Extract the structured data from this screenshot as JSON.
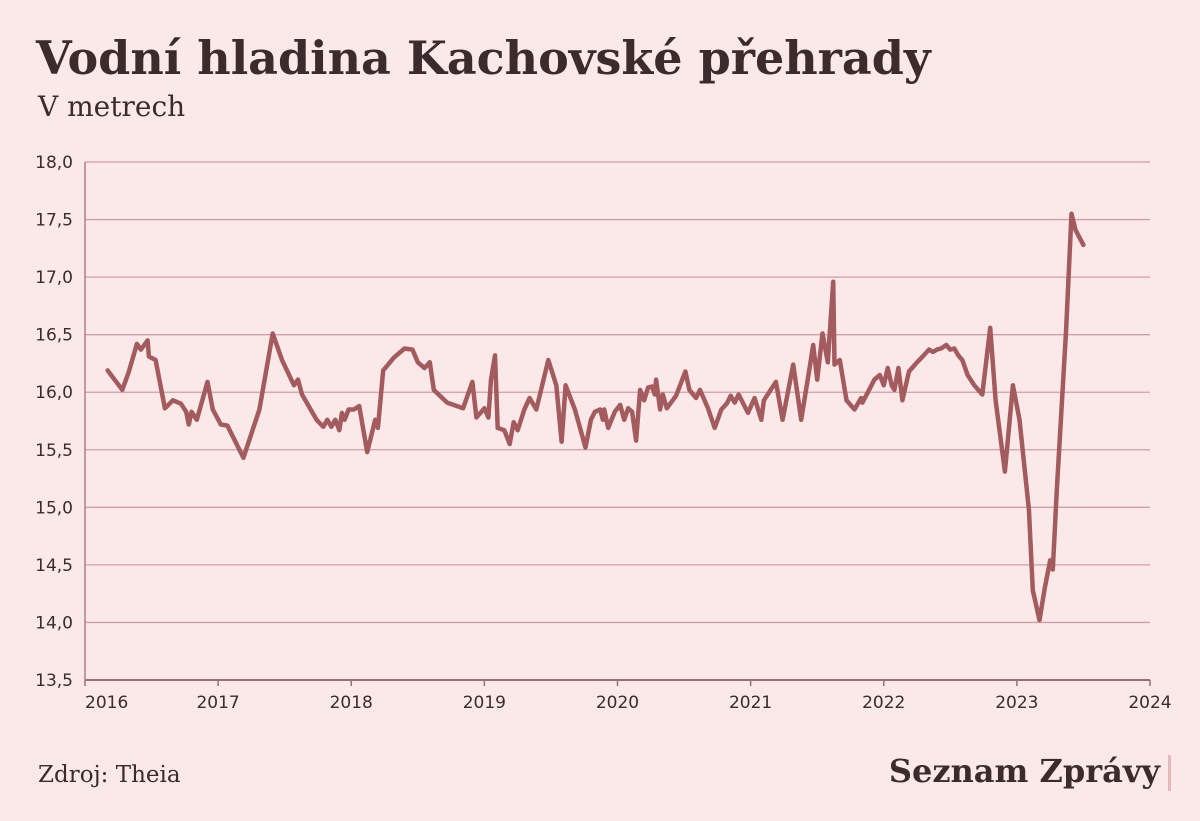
{
  "chart_data": {
    "type": "line",
    "title": "Vodní hladina Kachovské přehrady",
    "subtitle": "V metrech",
    "source": "Zdroj: Theia",
    "brand": "Seznam Zprávy",
    "xlim": [
      2016,
      2024
    ],
    "xticks": [
      2016,
      2017,
      2018,
      2019,
      2020,
      2021,
      2022,
      2023,
      2024
    ],
    "ylim": [
      13.5,
      18
    ],
    "yticks": [
      {
        "value": 13.5,
        "label": "13,5"
      },
      {
        "value": 14,
        "label": "14,0"
      },
      {
        "value": 14.5,
        "label": "14,5"
      },
      {
        "value": 15,
        "label": "15,0"
      },
      {
        "value": 15.5,
        "label": "15,5"
      },
      {
        "value": 16,
        "label": "16,0"
      },
      {
        "value": 16.5,
        "label": "16,5"
      },
      {
        "value": 17,
        "label": "17,0"
      },
      {
        "value": 17.5,
        "label": "17,5"
      },
      {
        "value": 18,
        "label": "18,0"
      }
    ],
    "grid": true,
    "series": [
      {
        "color": "#a35b5e",
        "x": [
          2016.17,
          2016.28,
          2016.33,
          2016.39,
          2016.42,
          2016.47,
          2016.48,
          2016.53,
          2016.6,
          2016.66,
          2016.72,
          2016.76,
          2016.78,
          2016.8,
          2016.84,
          2016.92,
          2016.96,
          2017.02,
          2017.07,
          2017.19,
          2017.31,
          2017.41,
          2017.48,
          2017.57,
          2017.6,
          2017.63,
          2017.74,
          2017.79,
          2017.82,
          2017.85,
          2017.88,
          2017.91,
          2017.93,
          2017.95,
          2017.98,
          2018.02,
          2018.06,
          2018.12,
          2018.18,
          2018.2,
          2018.24,
          2018.32,
          2018.4,
          2018.46,
          2018.5,
          2018.55,
          2018.59,
          2018.62,
          2018.72,
          2018.84,
          2018.91,
          2018.94,
          2019.0,
          2019.03,
          2019.05,
          2019.08,
          2019.1,
          2019.15,
          2019.19,
          2019.22,
          2019.25,
          2019.3,
          2019.34,
          2019.39,
          2019.48,
          2019.54,
          2019.58,
          2019.61,
          2019.68,
          2019.76,
          2019.8,
          2019.83,
          2019.87,
          2019.89,
          2019.9,
          2019.93,
          2019.98,
          2020.02,
          2020.05,
          2020.08,
          2020.11,
          2020.14,
          2020.17,
          2020.2,
          2020.23,
          2020.26,
          2020.28,
          2020.29,
          2020.32,
          2020.34,
          2020.37,
          2020.44,
          2020.51,
          2020.54,
          2020.59,
          2020.62,
          2020.68,
          2020.73,
          2020.78,
          2020.82,
          2020.85,
          2020.88,
          2020.91,
          2020.98,
          2021.03,
          2021.08,
          2021.1,
          2021.19,
          2021.24,
          2021.32,
          2021.38,
          2021.44,
          2021.47,
          2021.5,
          2021.54,
          2021.58,
          2021.62,
          2021.63,
          2021.67,
          2021.72,
          2021.78,
          2021.83,
          2021.84,
          2021.89,
          2021.93,
          2021.97,
          2022.0,
          2022.03,
          2022.06,
          2022.08,
          2022.11,
          2022.14,
          2022.19,
          2022.25,
          2022.3,
          2022.34,
          2022.37,
          2022.4,
          2022.43,
          2022.47,
          2022.5,
          2022.53,
          2022.56,
          2022.59,
          2022.63,
          2022.68,
          2022.74,
          2022.8,
          2022.84,
          2022.91,
          2022.97,
          2023.02,
          2023.09,
          2023.12,
          2023.17,
          2023.21,
          2023.25,
          2023.27,
          2023.3,
          2023.37,
          2023.41,
          2023.44,
          2023.5
        ],
        "values": [
          16.19,
          16.02,
          16.18,
          16.42,
          16.37,
          16.45,
          16.31,
          16.28,
          15.86,
          15.93,
          15.9,
          15.83,
          15.72,
          15.83,
          15.76,
          16.09,
          15.85,
          15.72,
          15.71,
          15.43,
          15.85,
          16.51,
          16.28,
          16.06,
          16.11,
          15.98,
          15.76,
          15.7,
          15.76,
          15.7,
          15.76,
          15.67,
          15.82,
          15.76,
          15.85,
          15.85,
          15.88,
          15.48,
          15.76,
          15.69,
          16.19,
          16.3,
          16.38,
          16.37,
          16.26,
          16.21,
          16.26,
          16.02,
          15.91,
          15.86,
          16.09,
          15.78,
          15.86,
          15.78,
          16.11,
          16.32,
          15.69,
          15.67,
          15.55,
          15.74,
          15.67,
          15.85,
          15.95,
          15.85,
          16.28,
          16.06,
          15.57,
          16.06,
          15.85,
          15.52,
          15.76,
          15.83,
          15.85,
          15.76,
          15.85,
          15.69,
          15.83,
          15.89,
          15.76,
          15.86,
          15.83,
          15.58,
          16.02,
          15.93,
          16.04,
          16.05,
          15.98,
          16.11,
          15.85,
          15.98,
          15.86,
          15.97,
          16.18,
          16.02,
          15.95,
          16.02,
          15.86,
          15.69,
          15.85,
          15.9,
          15.97,
          15.91,
          15.98,
          15.82,
          15.95,
          15.76,
          15.93,
          16.09,
          15.76,
          16.24,
          15.76,
          16.19,
          16.41,
          16.11,
          16.51,
          16.26,
          16.96,
          16.24,
          16.28,
          15.93,
          15.85,
          15.95,
          15.91,
          16.02,
          16.11,
          16.15,
          16.06,
          16.21,
          16.06,
          16.02,
          16.21,
          15.93,
          16.18,
          16.26,
          16.32,
          16.37,
          16.35,
          16.37,
          16.38,
          16.41,
          16.37,
          16.38,
          16.32,
          16.28,
          16.15,
          16.06,
          15.98,
          16.56,
          15.93,
          15.31,
          16.06,
          15.76,
          14.98,
          14.28,
          14.02,
          14.3,
          14.54,
          14.46,
          15.15,
          16.54,
          17.55,
          17.41,
          17.28
        ]
      }
    ]
  }
}
